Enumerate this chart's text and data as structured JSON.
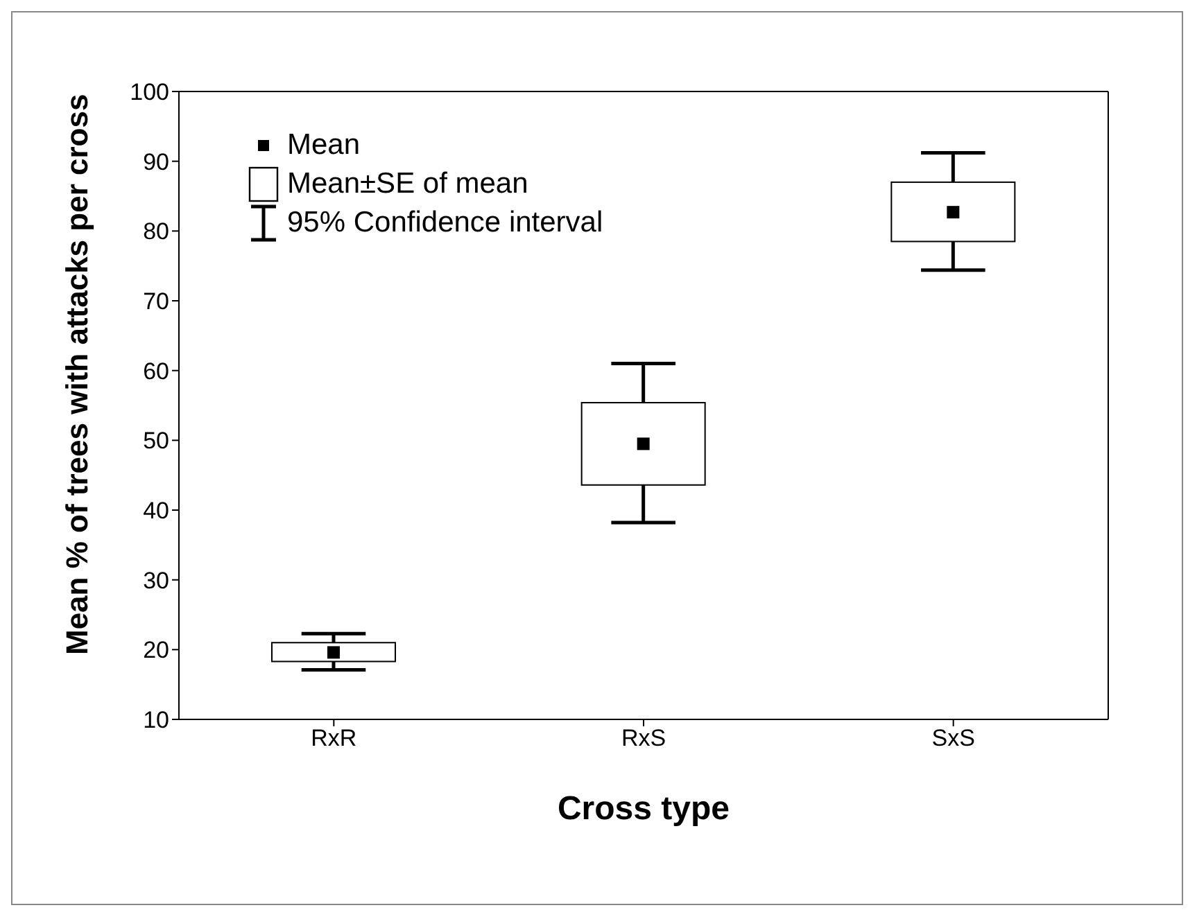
{
  "chart_data": {
    "type": "box",
    "xlabel": "Cross type",
    "ylabel": "Mean % of trees with attacks per cross",
    "categories": [
      "RxR",
      "RxS",
      "SxS"
    ],
    "boxes": [
      {
        "low": 17.1,
        "q1": 18.3,
        "q3": 21.0,
        "high": 22.3,
        "mean": 19.6
      },
      {
        "low": 38.2,
        "q1": 43.6,
        "q3": 55.4,
        "high": 61,
        "mean": 49.5
      },
      {
        "low": 74.4,
        "q1": 78.5,
        "q3": 87.0,
        "high": 91.2,
        "mean": 82.7
      }
    ],
    "color": "#000000",
    "ylim": [
      10,
      100
    ],
    "yticks": [
      10,
      20,
      30,
      40,
      50,
      60,
      70,
      80,
      90,
      100
    ],
    "annotations": [
      "Mean",
      "Mean±SE of mean",
      "95% Confidence interval"
    ]
  }
}
